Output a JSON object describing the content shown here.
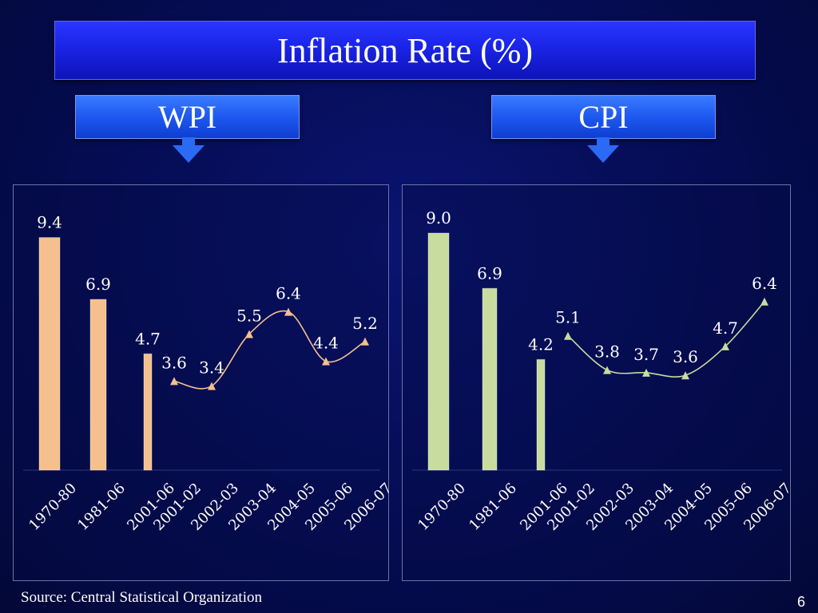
{
  "title": "Inflation Rate (%)",
  "wpi_label": "WPI",
  "cpi_label": "CPI",
  "source": "Source: Central Statistical Organization",
  "page_number": "6",
  "colors": {
    "wpi": "#f5c08e",
    "cpi": "#c7dc9e",
    "label": "#ffffff"
  },
  "chart_data": [
    {
      "type": "bar+line",
      "name": "WPI",
      "categories": [
        "1970-80",
        "1981-06",
        "2001-06",
        "2001-02",
        "2002-03",
        "2003-04",
        "2004-05",
        "2005-06",
        "2006-07"
      ],
      "bar_values": [
        9.4,
        6.9,
        4.7
      ],
      "line_values": [
        3.6,
        3.4,
        5.5,
        6.4,
        4.4,
        5.2
      ],
      "bar_labels": [
        "9.4",
        "6.9",
        "4.7"
      ],
      "line_labels": [
        "3.6",
        "3.4",
        "5.5",
        "6.4",
        "4.4",
        "5.2"
      ],
      "ylim": [
        0,
        10
      ]
    },
    {
      "type": "bar+line",
      "name": "CPI",
      "categories": [
        "1970-80",
        "1981-06",
        "2001-06",
        "2001-02",
        "2002-03",
        "2003-04",
        "2004-05",
        "2005-06",
        "2006-07"
      ],
      "bar_values": [
        9.0,
        6.9,
        4.2
      ],
      "line_values": [
        5.1,
        3.8,
        3.7,
        3.6,
        4.7,
        6.4
      ],
      "bar_labels": [
        "9.0",
        "6.9",
        "4.2"
      ],
      "line_labels": [
        "5.1",
        "3.8",
        "3.7",
        "3.6",
        "4.7",
        "6.4"
      ],
      "ylim": [
        0,
        10
      ]
    }
  ]
}
